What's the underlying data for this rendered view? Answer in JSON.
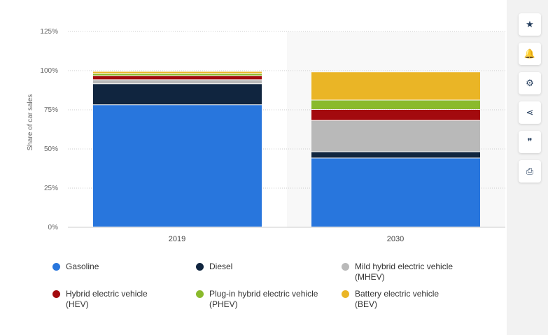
{
  "chart_data": {
    "type": "bar",
    "stacked": true,
    "categories": [
      "2019",
      "2030"
    ],
    "ylabel": "Share of car sales",
    "ylim": [
      0,
      125
    ],
    "yticks": [
      "0%",
      "25%",
      "50%",
      "75%",
      "100%",
      "125%"
    ],
    "grid": true,
    "legend_position": "bottom",
    "series": [
      {
        "name": "Gasoline",
        "color": "#2876dd",
        "values": [
          78,
          44
        ]
      },
      {
        "name": "Diesel",
        "color": "#10253f",
        "values": [
          13.4,
          4
        ]
      },
      {
        "name": "Mild hybrid electric vehicle (MHEV)",
        "color": "#b9b9b9",
        "values": [
          2.6,
          20
        ]
      },
      {
        "name": "Hybrid electric vehicle (HEV)",
        "color": "#a30a0e",
        "values": [
          2.5,
          7
        ]
      },
      {
        "name": "Plug-in hybrid electric vehicle (PHEV)",
        "color": "#8aba2c",
        "values": [
          1.4,
          6
        ]
      },
      {
        "name": "Battery electric vehicle (BEV)",
        "color": "#eab526",
        "values": [
          1.4,
          18
        ]
      }
    ],
    "legend": [
      {
        "line1": "Gasoline",
        "line2": ""
      },
      {
        "line1": "Diesel",
        "line2": ""
      },
      {
        "line1": "Mild hybrid electric vehicle",
        "line2": "(MHEV)"
      },
      {
        "line1": "Hybrid electric vehicle",
        "line2": "(HEV)"
      },
      {
        "line1": "Plug-in hybrid electric vehicle",
        "line2": "(PHEV)"
      },
      {
        "line1": "Battery electric vehicle",
        "line2": "(BEV)"
      }
    ]
  },
  "toolbar": [
    {
      "icon": "star-icon",
      "glyph": "★"
    },
    {
      "icon": "bell-icon",
      "glyph": "🔔"
    },
    {
      "icon": "gear-icon",
      "glyph": "⚙"
    },
    {
      "icon": "share-icon",
      "glyph": "⋖"
    },
    {
      "icon": "quote-icon",
      "glyph": "❞"
    },
    {
      "icon": "print-icon",
      "glyph": "⎙"
    }
  ]
}
